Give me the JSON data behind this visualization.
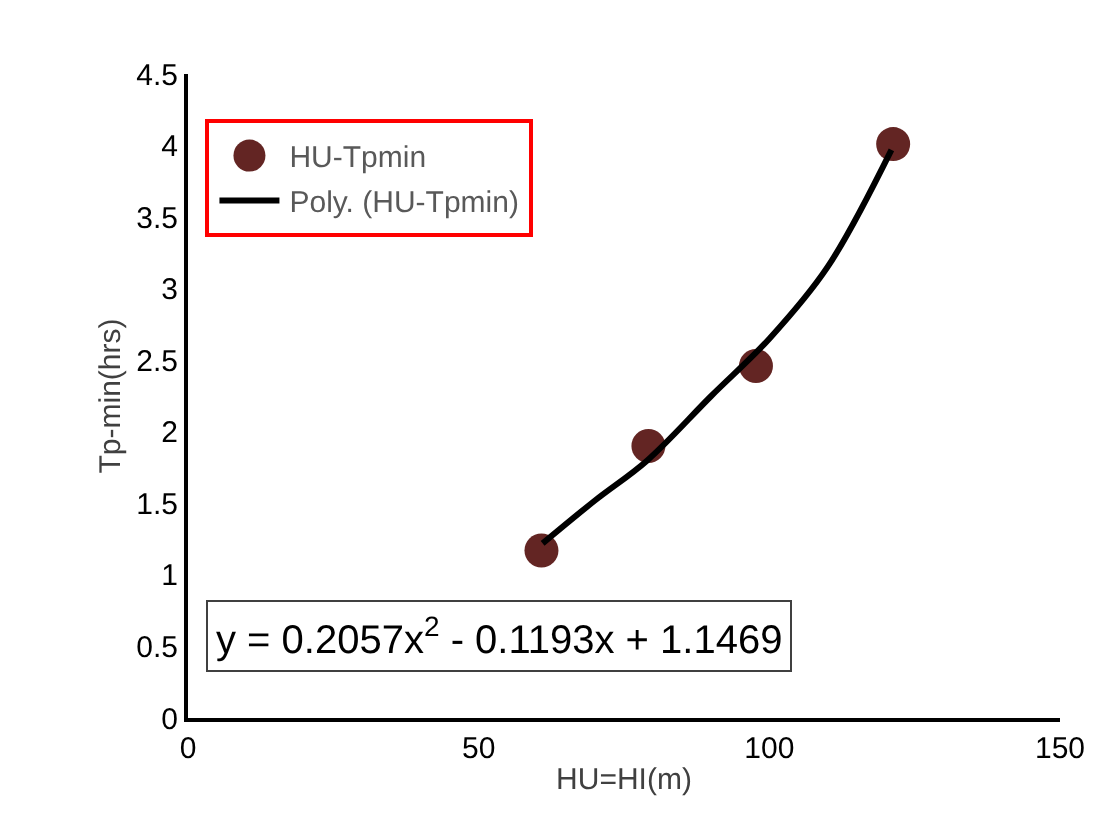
{
  "chart_data": {
    "type": "scatter",
    "xlabel": "HU=HI(m)",
    "ylabel": "Tp-min(hrs)",
    "xlim": [
      0,
      150
    ],
    "xticks": [
      0,
      50,
      100,
      150
    ],
    "ylim": [
      0,
      4.5
    ],
    "yticks": [
      0,
      0.5,
      1,
      1.5,
      2,
      2.5,
      3,
      3.5,
      4,
      4.5
    ],
    "legend": "top left",
    "series": [
      {
        "name": "HU-Tpmin",
        "marker": "circle",
        "color": "#632523",
        "x": [
          60.8,
          79.2,
          97.7,
          121.3
        ],
        "values": [
          1.17,
          1.9,
          2.46,
          4.01
        ]
      },
      {
        "name": "Poly. (HU-Tpmin)",
        "type": "line",
        "color": "#000000",
        "x": [
          61,
          70,
          79,
          90,
          100,
          110,
          121
        ],
        "values": [
          1.22,
          1.52,
          1.8,
          2.25,
          2.65,
          3.15,
          3.97
        ]
      }
    ],
    "annotations": [
      "y = 0.2057x$^{2}$ - 0.1193x + 1.1469"
    ]
  }
}
